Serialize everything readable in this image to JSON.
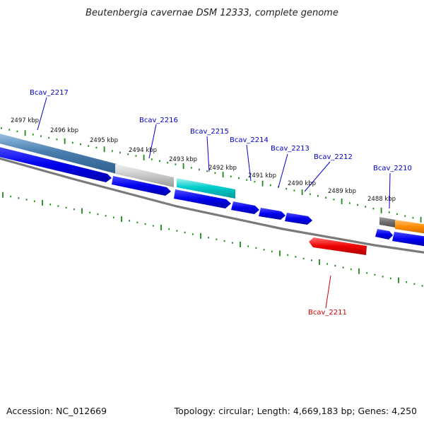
{
  "title": "Beutenbergia cavernae DSM 12333, complete genome",
  "footer": {
    "accession": "Accession: NC_012669",
    "summary": "Topology: circular; Length: 4,669,183 bp; Genes: 4,250"
  },
  "colors": {
    "background": "#ffffff",
    "tick": "#1a8a1a",
    "backbone": "#808080",
    "forward_label": "#0000cc",
    "reverse_label": "#cc0000",
    "cds_blue": "#0000ee",
    "steelblue": "#4a7fb0",
    "cyan": "#00c8c8",
    "orange": "#ff8c00",
    "red": "#ee0000",
    "gray": "#707070"
  },
  "kbp_labels": [
    "2497 kbp",
    "2496 kbp",
    "2495 kbp",
    "2494 kbp",
    "2493 kbp",
    "2492 kbp",
    "2491 kbp",
    "2490 kbp",
    "2489 kbp",
    "2488 kbp"
  ],
  "gene_labels": [
    {
      "id": "g2217",
      "text": "Bcav_2217",
      "strand": "forward"
    },
    {
      "id": "g2216",
      "text": "Bcav_2216",
      "strand": "forward"
    },
    {
      "id": "g2215",
      "text": "Bcav_2215",
      "strand": "forward"
    },
    {
      "id": "g2214",
      "text": "Bcav_2214",
      "strand": "forward"
    },
    {
      "id": "g2213",
      "text": "Bcav_2213",
      "strand": "forward"
    },
    {
      "id": "g2212",
      "text": "Bcav_2212",
      "strand": "forward"
    },
    {
      "id": "g2210",
      "text": "Bcav_2210",
      "strand": "forward"
    },
    {
      "id": "g2211",
      "text": "Bcav_2211",
      "strand": "reverse"
    }
  ]
}
